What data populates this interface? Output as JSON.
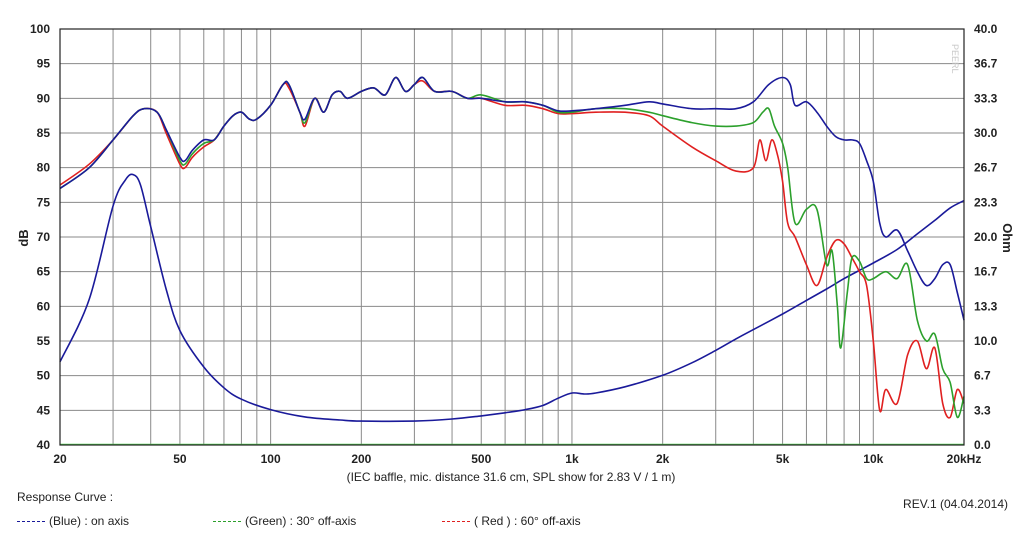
{
  "chart_data": {
    "type": "line",
    "title": "",
    "caption": "(IEC baffle, mic. distance 31.6 cm, SPL show for 2.83 V / 1 m)",
    "x_scale": "log",
    "xlim": [
      20,
      20000
    ],
    "x_ticks": [
      {
        "value": 20,
        "label": "20"
      },
      {
        "value": 50,
        "label": "50"
      },
      {
        "value": 100,
        "label": "100"
      },
      {
        "value": 200,
        "label": "200"
      },
      {
        "value": 500,
        "label": "500"
      },
      {
        "value": 1000,
        "label": "1k"
      },
      {
        "value": 2000,
        "label": "2k"
      },
      {
        "value": 5000,
        "label": "5k"
      },
      {
        "value": 10000,
        "label": "10k"
      },
      {
        "value": 20000,
        "label": "20kHz"
      }
    ],
    "ylabel": "dB",
    "ylim": [
      40,
      100
    ],
    "y_ticks": [
      40,
      45,
      50,
      55,
      60,
      65,
      70,
      75,
      80,
      85,
      90,
      95,
      100
    ],
    "y2label": "Ohm",
    "y2lim": [
      0,
      40
    ],
    "y2_ticks": [
      "0.0",
      "3.3",
      "6.7",
      "10.0",
      "13.3",
      "16.7",
      "20.0",
      "23.3",
      "26.7",
      "30.0",
      "33.3",
      "36.7",
      "40.0"
    ],
    "grid": true,
    "series": [
      {
        "name": "(Blue) : on axis",
        "color": "#1a1a9a",
        "axis": "left",
        "points": [
          [
            20,
            77
          ],
          [
            25,
            80
          ],
          [
            30,
            84
          ],
          [
            35,
            87.5
          ],
          [
            38,
            88.5
          ],
          [
            42,
            88
          ],
          [
            45,
            85.5
          ],
          [
            50,
            81.5
          ],
          [
            52,
            81
          ],
          [
            55,
            82.5
          ],
          [
            60,
            84
          ],
          [
            65,
            84
          ],
          [
            70,
            86
          ],
          [
            75,
            87.5
          ],
          [
            80,
            88
          ],
          [
            85,
            87
          ],
          [
            90,
            87
          ],
          [
            100,
            89
          ],
          [
            110,
            92
          ],
          [
            115,
            92
          ],
          [
            125,
            88
          ],
          [
            130,
            87
          ],
          [
            140,
            90
          ],
          [
            150,
            88
          ],
          [
            160,
            90.5
          ],
          [
            170,
            91
          ],
          [
            180,
            90
          ],
          [
            200,
            91
          ],
          [
            220,
            91.5
          ],
          [
            240,
            90.5
          ],
          [
            260,
            93
          ],
          [
            280,
            91
          ],
          [
            300,
            92
          ],
          [
            320,
            93
          ],
          [
            350,
            91
          ],
          [
            400,
            91
          ],
          [
            450,
            90
          ],
          [
            500,
            90
          ],
          [
            600,
            89.5
          ],
          [
            700,
            89.5
          ],
          [
            800,
            89
          ],
          [
            900,
            88.2
          ],
          [
            1000,
            88.2
          ],
          [
            1200,
            88.5
          ],
          [
            1500,
            89
          ],
          [
            1800,
            89.5
          ],
          [
            2000,
            89.2
          ],
          [
            2500,
            88.5
          ],
          [
            3000,
            88.5
          ],
          [
            3500,
            88.5
          ],
          [
            4000,
            89.5
          ],
          [
            4500,
            92
          ],
          [
            5000,
            93
          ],
          [
            5300,
            92
          ],
          [
            5500,
            89
          ],
          [
            6000,
            89.5
          ],
          [
            6500,
            88
          ],
          [
            7000,
            86
          ],
          [
            7500,
            84.5
          ],
          [
            8000,
            84
          ],
          [
            8500,
            84
          ],
          [
            9000,
            83.5
          ],
          [
            9500,
            81
          ],
          [
            10000,
            78
          ],
          [
            10500,
            72
          ],
          [
            11000,
            70
          ],
          [
            12000,
            71
          ],
          [
            13000,
            68
          ],
          [
            14000,
            65
          ],
          [
            15000,
            63
          ],
          [
            16000,
            64
          ],
          [
            17000,
            66
          ],
          [
            18000,
            66
          ],
          [
            19000,
            62
          ],
          [
            20000,
            58
          ]
        ]
      },
      {
        "name": "(Green) : 30° off-axis",
        "color": "#2ca02c",
        "axis": "left",
        "points": [
          [
            20,
            77
          ],
          [
            25,
            80
          ],
          [
            30,
            84
          ],
          [
            35,
            87.5
          ],
          [
            38,
            88.5
          ],
          [
            42,
            88
          ],
          [
            45,
            85.5
          ],
          [
            50,
            81
          ],
          [
            52,
            80.5
          ],
          [
            55,
            82
          ],
          [
            60,
            83.5
          ],
          [
            65,
            84
          ],
          [
            70,
            86
          ],
          [
            75,
            87.5
          ],
          [
            80,
            88
          ],
          [
            85,
            87
          ],
          [
            90,
            87
          ],
          [
            100,
            89
          ],
          [
            110,
            92
          ],
          [
            115,
            92
          ],
          [
            125,
            88
          ],
          [
            130,
            86.5
          ],
          [
            140,
            90
          ],
          [
            150,
            88
          ],
          [
            160,
            90.5
          ],
          [
            170,
            91
          ],
          [
            180,
            90
          ],
          [
            200,
            91
          ],
          [
            220,
            91.5
          ],
          [
            240,
            90.5
          ],
          [
            260,
            93
          ],
          [
            280,
            91
          ],
          [
            300,
            92
          ],
          [
            320,
            93
          ],
          [
            350,
            91
          ],
          [
            400,
            91
          ],
          [
            450,
            90
          ],
          [
            500,
            90.5
          ],
          [
            600,
            89.5
          ],
          [
            700,
            89.5
          ],
          [
            800,
            89
          ],
          [
            900,
            88
          ],
          [
            1000,
            88
          ],
          [
            1200,
            88.5
          ],
          [
            1500,
            88.5
          ],
          [
            1800,
            88
          ],
          [
            2000,
            87.5
          ],
          [
            2500,
            86.5
          ],
          [
            3000,
            86
          ],
          [
            3500,
            86
          ],
          [
            4000,
            86.5
          ],
          [
            4300,
            88
          ],
          [
            4500,
            88.5
          ],
          [
            4700,
            86
          ],
          [
            5000,
            83.5
          ],
          [
            5200,
            80
          ],
          [
            5500,
            72
          ],
          [
            6000,
            74
          ],
          [
            6500,
            74
          ],
          [
            7000,
            66
          ],
          [
            7300,
            68
          ],
          [
            7600,
            60
          ],
          [
            7800,
            54
          ],
          [
            8200,
            62
          ],
          [
            8500,
            67
          ],
          [
            9000,
            66.5
          ],
          [
            9500,
            64
          ],
          [
            10000,
            64
          ],
          [
            11000,
            65
          ],
          [
            12000,
            64
          ],
          [
            13000,
            66
          ],
          [
            14000,
            58
          ],
          [
            15000,
            55
          ],
          [
            16000,
            56
          ],
          [
            17000,
            51
          ],
          [
            18000,
            49
          ],
          [
            19000,
            44
          ],
          [
            20000,
            47
          ]
        ]
      },
      {
        "name": "( Red ) : 60° off-axis",
        "color": "#e02020",
        "axis": "left",
        "points": [
          [
            20,
            77.5
          ],
          [
            25,
            80.5
          ],
          [
            30,
            84
          ],
          [
            35,
            87.5
          ],
          [
            38,
            88.5
          ],
          [
            42,
            88
          ],
          [
            45,
            85
          ],
          [
            50,
            80.5
          ],
          [
            52,
            80
          ],
          [
            55,
            81.5
          ],
          [
            60,
            83
          ],
          [
            65,
            84
          ],
          [
            70,
            86
          ],
          [
            75,
            87.5
          ],
          [
            80,
            88
          ],
          [
            85,
            87
          ],
          [
            90,
            87
          ],
          [
            100,
            89
          ],
          [
            110,
            92
          ],
          [
            115,
            91.5
          ],
          [
            125,
            88
          ],
          [
            130,
            86
          ],
          [
            140,
            90
          ],
          [
            150,
            88
          ],
          [
            160,
            90.5
          ],
          [
            170,
            91
          ],
          [
            180,
            90
          ],
          [
            200,
            91
          ],
          [
            220,
            91.5
          ],
          [
            240,
            90.5
          ],
          [
            260,
            93
          ],
          [
            280,
            91
          ],
          [
            300,
            92
          ],
          [
            320,
            92.5
          ],
          [
            350,
            91
          ],
          [
            400,
            91
          ],
          [
            450,
            90
          ],
          [
            500,
            90
          ],
          [
            600,
            89
          ],
          [
            700,
            89
          ],
          [
            800,
            88.5
          ],
          [
            900,
            87.8
          ],
          [
            1000,
            87.8
          ],
          [
            1200,
            88
          ],
          [
            1500,
            88
          ],
          [
            1800,
            87.5
          ],
          [
            2000,
            86
          ],
          [
            2500,
            83
          ],
          [
            3000,
            81
          ],
          [
            3500,
            79.5
          ],
          [
            4000,
            80
          ],
          [
            4200,
            84
          ],
          [
            4400,
            81
          ],
          [
            4600,
            84
          ],
          [
            4800,
            82
          ],
          [
            5000,
            78
          ],
          [
            5200,
            72
          ],
          [
            5500,
            70
          ],
          [
            6000,
            66
          ],
          [
            6500,
            63
          ],
          [
            7000,
            67
          ],
          [
            7500,
            69.5
          ],
          [
            8000,
            69
          ],
          [
            8500,
            67
          ],
          [
            9000,
            65
          ],
          [
            9500,
            63
          ],
          [
            10000,
            55
          ],
          [
            10500,
            45
          ],
          [
            11000,
            48
          ],
          [
            12000,
            46
          ],
          [
            13000,
            53
          ],
          [
            14000,
            55
          ],
          [
            15000,
            51
          ],
          [
            16000,
            54
          ],
          [
            17000,
            46
          ],
          [
            18000,
            44
          ],
          [
            19000,
            48
          ],
          [
            20000,
            46
          ]
        ]
      },
      {
        "name": "Impedance",
        "color": "#1a1a9a",
        "axis": "right",
        "points": [
          [
            20,
            8
          ],
          [
            25,
            14
          ],
          [
            30,
            23
          ],
          [
            33,
            25.5
          ],
          [
            35,
            26
          ],
          [
            37,
            25
          ],
          [
            40,
            21
          ],
          [
            45,
            15
          ],
          [
            50,
            11
          ],
          [
            60,
            7.5
          ],
          [
            70,
            5.5
          ],
          [
            80,
            4.4
          ],
          [
            100,
            3.4
          ],
          [
            130,
            2.7
          ],
          [
            170,
            2.4
          ],
          [
            200,
            2.3
          ],
          [
            300,
            2.3
          ],
          [
            400,
            2.5
          ],
          [
            500,
            2.8
          ],
          [
            600,
            3.1
          ],
          [
            700,
            3.4
          ],
          [
            800,
            3.8
          ],
          [
            900,
            4.5
          ],
          [
            1000,
            5
          ],
          [
            1100,
            4.9
          ],
          [
            1200,
            5
          ],
          [
            1500,
            5.6
          ],
          [
            2000,
            6.7
          ],
          [
            2500,
            7.9
          ],
          [
            3000,
            9.1
          ],
          [
            3500,
            10.2
          ],
          [
            4000,
            11.1
          ],
          [
            5000,
            12.6
          ],
          [
            6000,
            13.9
          ],
          [
            7000,
            15
          ],
          [
            8000,
            16
          ],
          [
            9000,
            16.8
          ],
          [
            10000,
            17.5
          ],
          [
            12000,
            18.8
          ],
          [
            14000,
            20.3
          ],
          [
            16000,
            21.6
          ],
          [
            18000,
            22.8
          ],
          [
            20000,
            23.5
          ]
        ]
      }
    ]
  },
  "legend": {
    "title": "Response Curve :",
    "entries": [
      {
        "label": "(Blue)  : on axis",
        "color": "#1a1a9a"
      },
      {
        "label": "(Green) : 30° off-axis",
        "color": "#2ca02c"
      },
      {
        "label": "( Red ) : 60° off-axis",
        "color": "#e02020"
      }
    ]
  },
  "watermark": "PEERL",
  "revision": "REV.1 (04.04.2014)"
}
